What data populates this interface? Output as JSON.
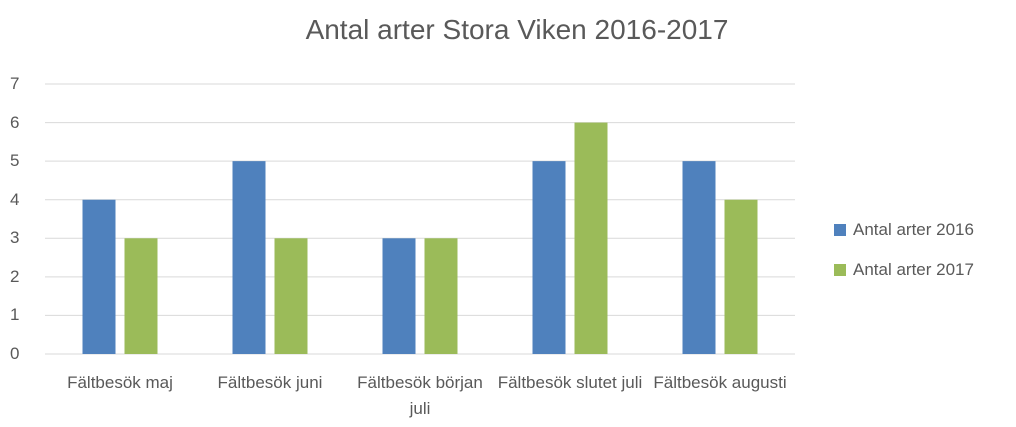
{
  "chart_data": {
    "type": "bar",
    "title": "Antal arter Stora Viken 2016-2017",
    "categories": [
      "Fältbesök maj",
      "Fältbesök juni",
      "Fältbesök början juli",
      "Fältbesök slutet juli",
      "Fältbesök augusti"
    ],
    "series": [
      {
        "name": "Antal arter 2016",
        "color": "#4f81bd",
        "values": [
          4,
          5,
          3,
          5,
          5
        ]
      },
      {
        "name": "Antal arter 2017",
        "color": "#9bbb59",
        "values": [
          3,
          3,
          3,
          6,
          4
        ]
      }
    ],
    "ylim": [
      0,
      7
    ],
    "yticks": [
      0,
      1,
      2,
      3,
      4,
      5,
      6,
      7
    ],
    "grid": true,
    "legend": "right"
  }
}
